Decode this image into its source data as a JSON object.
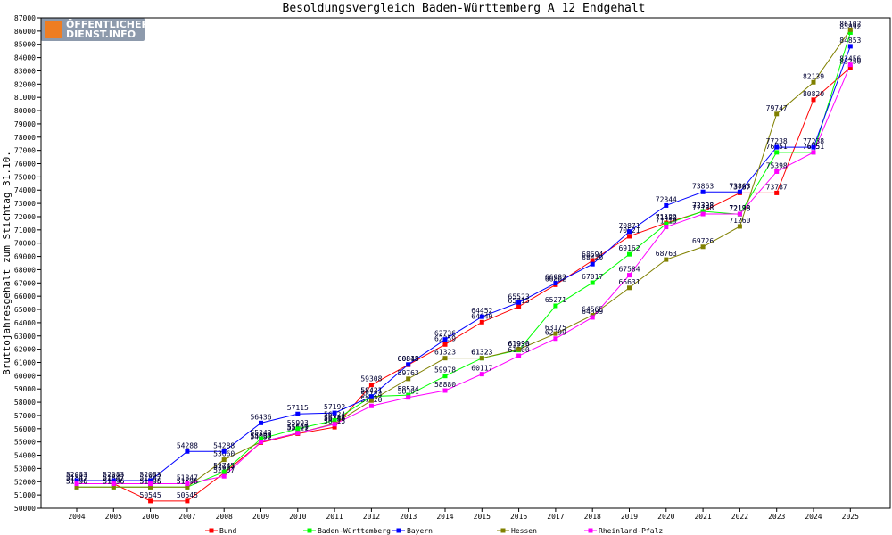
{
  "logo": {
    "line1": "ÖFFENTLICHER",
    "line2": "DIENST.INFO"
  },
  "chart_data": {
    "type": "line",
    "title": "Besoldungsvergleich Baden-Württemberg A 12 Endgehalt",
    "xlabel": "",
    "ylabel": "Bruttojahresgehalt zum Stichtag 31.10.",
    "ylim": [
      50000,
      87000
    ],
    "ytick_step": 1000,
    "grid": false,
    "legend_position": "bottom",
    "categories": [
      "2004",
      "2005",
      "2006",
      "2007",
      "2008",
      "2009",
      "2010",
      "2011",
      "2012",
      "2013",
      "2014",
      "2015",
      "2016",
      "2017",
      "2018",
      "2019",
      "2020",
      "2021",
      "2022",
      "2023",
      "2024",
      "2025"
    ],
    "series": [
      {
        "name": "Bund",
        "color": "#ff0000",
        "values": [
          51847,
          51847,
          50545,
          50545,
          52657,
          54952,
          55621,
          56115,
          59308,
          60818,
          62359,
          64040,
          65215,
          66862,
          68694,
          70521,
          71522,
          72398,
          73787,
          73787,
          80820,
          83250
        ]
      },
      {
        "name": "Baden-Württemberg",
        "color": "#00ff00",
        "values": [
          51596,
          51596,
          51595,
          51595,
          52745,
          55243,
          55993,
          56624,
          58431,
          58534,
          59978,
          61323,
          61936,
          65271,
          67017,
          69162,
          71450,
          72398,
          72178,
          76851,
          76851,
          85892
        ]
      },
      {
        "name": "Bayern",
        "color": "#0000ff",
        "values": [
          52083,
          52083,
          52083,
          54288,
          54288,
          56436,
          57115,
          57192,
          58431,
          60845,
          62736,
          64452,
          65523,
          66982,
          68420,
          70871,
          72844,
          73863,
          73863,
          77238,
          77238,
          84853
        ]
      },
      {
        "name": "Hessen",
        "color": "#808000",
        "values": [
          51596,
          51596,
          51596,
          51596,
          53660,
          55003,
          55669,
          56384,
          58124,
          59763,
          61323,
          61323,
          61990,
          63175,
          64565,
          66631,
          68763,
          69726,
          71260,
          79747,
          82139,
          86102
        ]
      },
      {
        "name": "Rheinland-Pfalz",
        "color": "#ff00ff",
        "values": [
          51847,
          51847,
          51847,
          51847,
          52407,
          55003,
          55669,
          56336,
          57720,
          58361,
          58880,
          60117,
          61500,
          62799,
          64399,
          67584,
          71219,
          72198,
          72198,
          75398,
          76851,
          83456
        ]
      }
    ]
  }
}
